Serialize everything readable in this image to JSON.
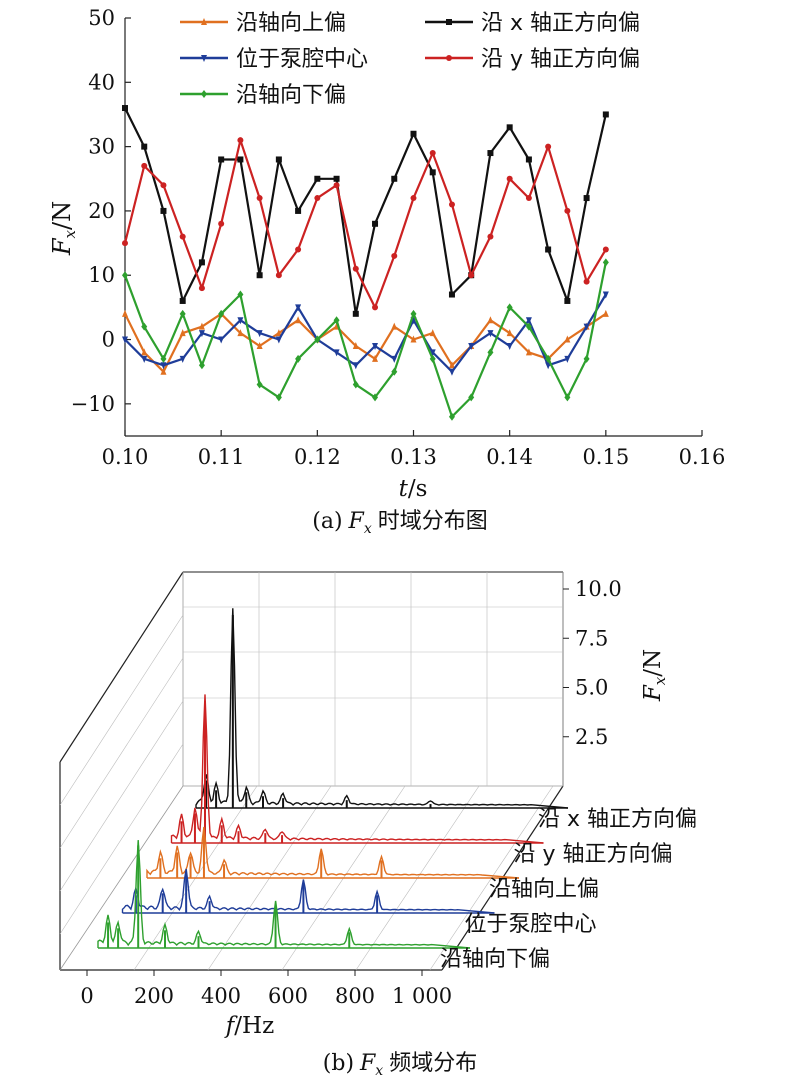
{
  "chart_data": [
    {
      "type": "line",
      "caption": "(a) F_x 时域分布图",
      "caption_prefix": "(a)",
      "caption_suffix": "时域分布图",
      "ylabel_var": "F",
      "ylabel_sub": "x",
      "ylabel_unit": "/N",
      "xlabel_var": "t",
      "xlabel_unit": "/s",
      "xlim": [
        0.1,
        0.16
      ],
      "ylim": [
        -15,
        50
      ],
      "xticks": [
        "0.10",
        "0.11",
        "0.12",
        "0.13",
        "0.14",
        "0.15",
        "0.16"
      ],
      "yticks": [
        "50",
        "40",
        "30",
        "20",
        "10",
        "0",
        "−10"
      ],
      "legend_placement": "top",
      "series": [
        {
          "name": "沿轴向上偏",
          "color": "#e07020",
          "marker": "triangle",
          "x": [
            0.1,
            0.102,
            0.104,
            0.106,
            0.108,
            0.11,
            0.112,
            0.114,
            0.116,
            0.118,
            0.12,
            0.122,
            0.124,
            0.126,
            0.128,
            0.13,
            0.132,
            0.134,
            0.136,
            0.138,
            0.14,
            0.142,
            0.144,
            0.146,
            0.148,
            0.15
          ],
          "y": [
            4,
            -2,
            -5,
            1,
            2,
            4,
            1,
            -1,
            1,
            3,
            0,
            2,
            -1,
            -3,
            2,
            0,
            1,
            -4,
            -1,
            3,
            1,
            -2,
            -3,
            0,
            2,
            4
          ]
        },
        {
          "name": "沿 x 轴正方向偏",
          "color": "#111111",
          "marker": "square",
          "x": [
            0.1,
            0.102,
            0.104,
            0.106,
            0.108,
            0.11,
            0.112,
            0.114,
            0.116,
            0.118,
            0.12,
            0.122,
            0.124,
            0.126,
            0.128,
            0.13,
            0.132,
            0.134,
            0.136,
            0.138,
            0.14,
            0.142,
            0.144,
            0.146,
            0.148,
            0.15
          ],
          "y": [
            36,
            30,
            20,
            6,
            12,
            28,
            28,
            10,
            28,
            20,
            25,
            25,
            4,
            18,
            25,
            32,
            26,
            7,
            10,
            29,
            33,
            28,
            14,
            6,
            22,
            35
          ]
        },
        {
          "name": "位于泵腔中心",
          "color": "#1f3d99",
          "marker": "triangle-down",
          "x": [
            0.1,
            0.102,
            0.104,
            0.106,
            0.108,
            0.11,
            0.112,
            0.114,
            0.116,
            0.118,
            0.12,
            0.122,
            0.124,
            0.126,
            0.128,
            0.13,
            0.132,
            0.134,
            0.136,
            0.138,
            0.14,
            0.142,
            0.144,
            0.146,
            0.148,
            0.15
          ],
          "y": [
            0,
            -3,
            -4,
            -3,
            1,
            0,
            3,
            1,
            0,
            5,
            0,
            -2,
            -4,
            -1,
            -3,
            3,
            -2,
            -5,
            -1,
            1,
            -1,
            3,
            -4,
            -3,
            2,
            7
          ]
        },
        {
          "name": "沿 y 轴正方向偏",
          "color": "#cc2222",
          "marker": "circle",
          "x": [
            0.1,
            0.102,
            0.104,
            0.106,
            0.108,
            0.11,
            0.112,
            0.114,
            0.116,
            0.118,
            0.12,
            0.122,
            0.124,
            0.126,
            0.128,
            0.13,
            0.132,
            0.134,
            0.136,
            0.138,
            0.14,
            0.142,
            0.144,
            0.146,
            0.148,
            0.15
          ],
          "y": [
            15,
            27,
            24,
            16,
            8,
            18,
            31,
            22,
            10,
            14,
            22,
            24,
            11,
            5,
            13,
            22,
            29,
            21,
            10,
            16,
            25,
            22,
            30,
            20,
            9,
            14
          ]
        },
        {
          "name": "沿轴向下偏",
          "color": "#2ea02e",
          "marker": "diamond",
          "x": [
            0.1,
            0.102,
            0.104,
            0.106,
            0.108,
            0.11,
            0.112,
            0.114,
            0.116,
            0.118,
            0.12,
            0.122,
            0.124,
            0.126,
            0.128,
            0.13,
            0.132,
            0.134,
            0.136,
            0.138,
            0.14,
            0.142,
            0.144,
            0.146,
            0.148,
            0.15
          ],
          "y": [
            10,
            2,
            -3,
            4,
            -4,
            4,
            7,
            -7,
            -9,
            -3,
            0,
            3,
            -7,
            -9,
            -5,
            4,
            -3,
            -12,
            -9,
            -2,
            5,
            2,
            -3,
            -9,
            -3,
            12
          ]
        }
      ]
    },
    {
      "type": "area",
      "caption": "(b) F_x 频域分布",
      "caption_prefix": "(b)",
      "caption_suffix": "频域分布",
      "xlabel_var": "f",
      "xlabel_unit": "/Hz",
      "zlabel_var": "F",
      "zlabel_sub": "x",
      "zlabel_unit": "/N",
      "xlim": [
        0,
        1000
      ],
      "zlim": [
        0,
        11
      ],
      "xticks": [
        "0",
        "200",
        "400",
        "600",
        "800",
        "1 000"
      ],
      "zticks": [
        "2.5",
        "5.0",
        "7.5",
        "10.0"
      ],
      "series": [
        {
          "name": "沿 x 轴正方向偏",
          "color": "#111111",
          "peaks": [
            [
              30,
              1.4
            ],
            [
              60,
              0.9
            ],
            [
              110,
              9.8
            ],
            [
              150,
              0.8
            ],
            [
              200,
              0.6
            ],
            [
              260,
              0.5
            ],
            [
              450,
              0.4
            ],
            [
              700,
              0.2
            ]
          ]
        },
        {
          "name": "沿 y 轴正方向偏",
          "color": "#cc2222",
          "peaks": [
            [
              30,
              1.1
            ],
            [
              70,
              1.5
            ],
            [
              100,
              7.2
            ],
            [
              150,
              0.9
            ],
            [
              200,
              0.6
            ],
            [
              280,
              0.5
            ],
            [
              330,
              0.4
            ]
          ]
        },
        {
          "name": "沿轴向上偏",
          "color": "#e07020",
          "peaks": [
            [
              40,
              1.0
            ],
            [
              90,
              1.3
            ],
            [
              130,
              1.1
            ],
            [
              170,
              2.3
            ],
            [
              230,
              0.7
            ],
            [
              520,
              1.3
            ],
            [
              700,
              0.9
            ]
          ]
        },
        {
          "name": "位于泵腔中心",
          "color": "#1f3d99",
          "peaks": [
            [
              40,
              0.9
            ],
            [
              120,
              1.0
            ],
            [
              190,
              2.0
            ],
            [
              260,
              0.6
            ],
            [
              540,
              1.5
            ],
            [
              760,
              0.9
            ]
          ]
        },
        {
          "name": "沿轴向下偏",
          "color": "#2ea02e",
          "peaks": [
            [
              30,
              1.3
            ],
            [
              60,
              1.0
            ],
            [
              120,
              5.2
            ],
            [
              200,
              0.9
            ],
            [
              300,
              0.6
            ],
            [
              530,
              2.2
            ],
            [
              750,
              0.8
            ]
          ]
        }
      ]
    }
  ]
}
